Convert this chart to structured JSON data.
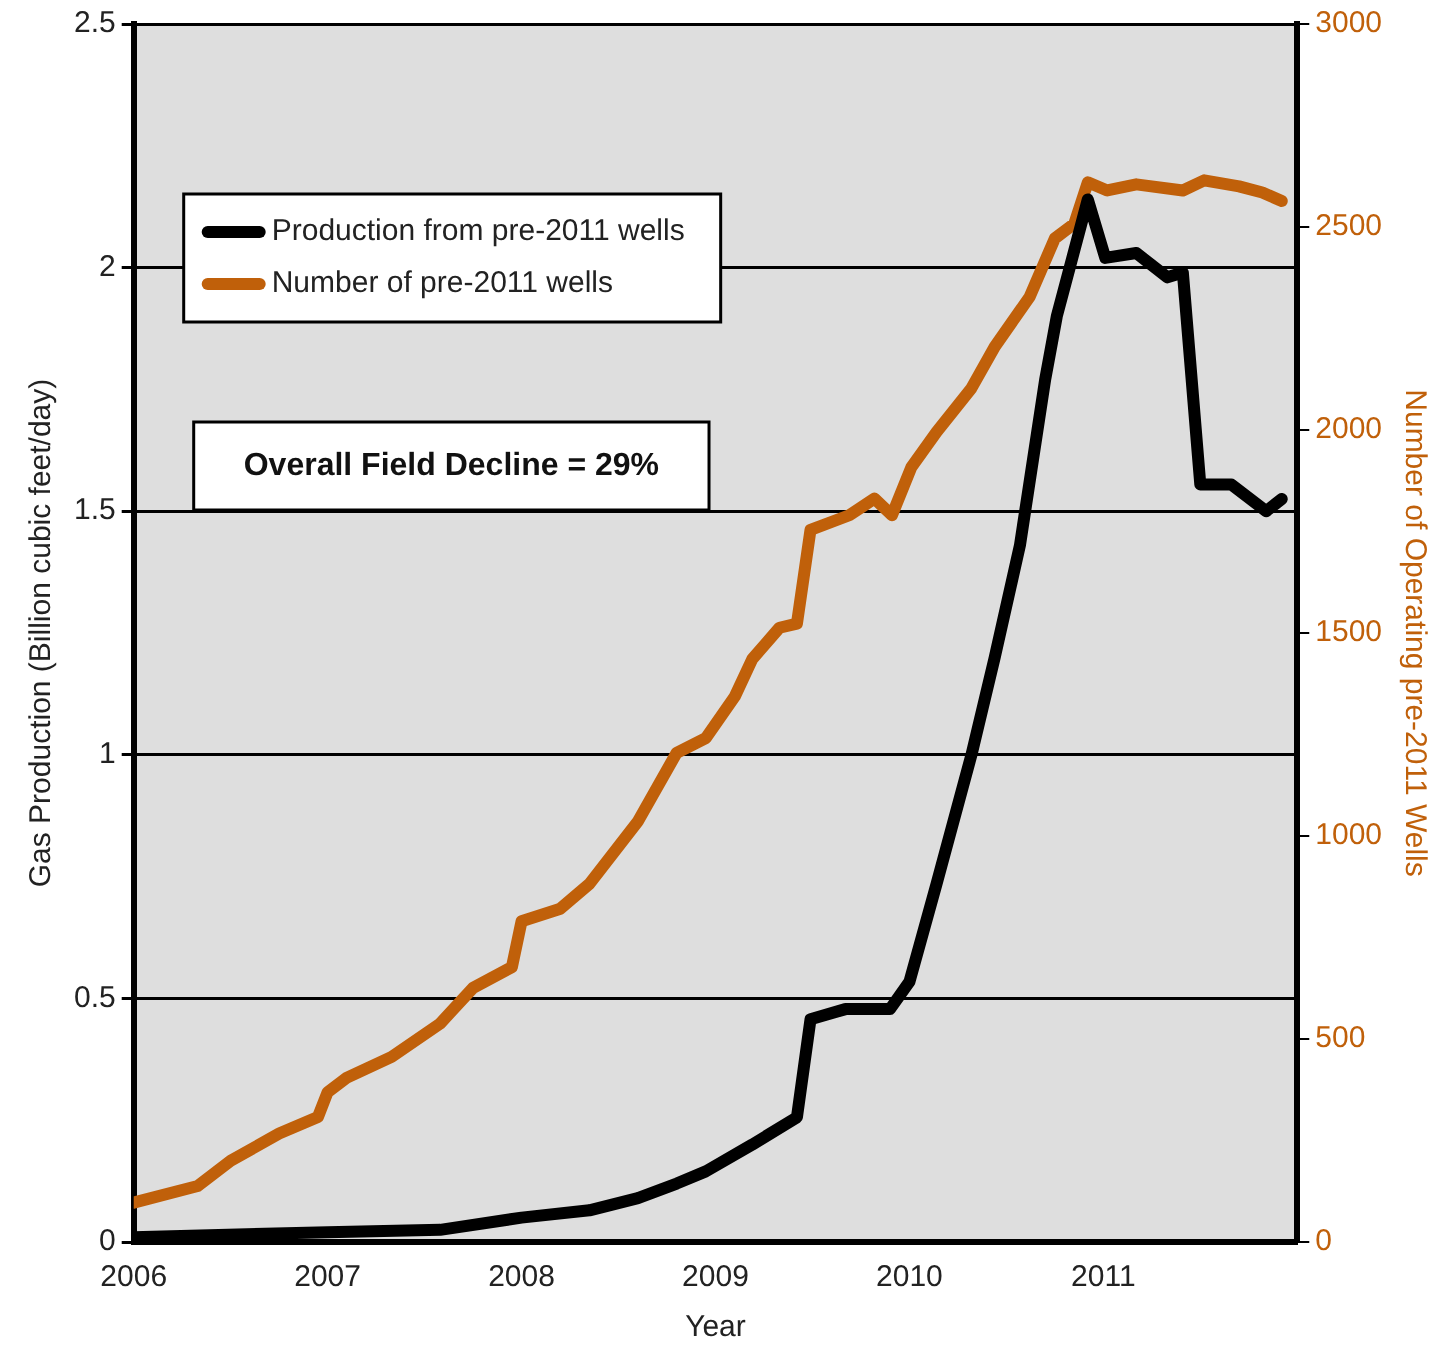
{
  "chart_data": {
    "type": "line",
    "xlabel": "Year",
    "ylabel": "Gas Production (Billion cubic feet/day)",
    "y2label": "Number of Operating pre-2011 Wells",
    "xlim": [
      2006,
      2012
    ],
    "xticks": [
      2006,
      2007,
      2008,
      2009,
      2010,
      2011
    ],
    "ylim": [
      0,
      2.5
    ],
    "yticks": [
      0,
      0.5,
      1,
      1.5,
      2,
      2.5
    ],
    "y2lim": [
      0,
      3000
    ],
    "y2ticks": [
      0,
      500,
      1000,
      1500,
      2000,
      2500,
      3000
    ],
    "grid": "y",
    "legend": "top left",
    "marker": "none",
    "line_style": "solid",
    "annotations": [
      "Overall Field Decline = 29%"
    ],
    "series": [
      {
        "name": "Production from pre-2011 wells",
        "color": "#000000",
        "x": [
          2006,
          2007,
          2007.58,
          2008,
          2008.35,
          2008.6,
          2008.8,
          2008.95,
          2009.19,
          2009.42,
          2009.49,
          2009.67,
          2009.9,
          2010,
          2010.14,
          2010.32,
          2010.44,
          2010.57,
          2010.7,
          2010.76,
          2010.92,
          2011.01,
          2011.17,
          2011.33,
          2011.41,
          2011.5,
          2011.66,
          2011.84,
          2011.92
        ],
        "values": [
          0.01,
          0.02,
          0.025,
          0.05,
          0.065,
          0.09,
          0.12,
          0.145,
          0.2,
          0.256,
          0.457,
          0.478,
          0.478,
          0.534,
          0.735,
          1.0,
          1.2,
          1.43,
          1.77,
          1.9,
          2.14,
          2.02,
          2.03,
          1.98,
          1.99,
          1.555,
          1.555,
          1.5,
          1.525
        ]
      },
      {
        "name": "Number of pre-2011 wells",
        "color": "#c0600a",
        "axis": "y2",
        "x": [
          2006,
          2006.33,
          2006.5,
          2006.75,
          2006.95,
          2007,
          2007.1,
          2007.33,
          2007.58,
          2007.75,
          2007.95,
          2008,
          2008.2,
          2008.35,
          2008.6,
          2008.8,
          2008.95,
          2009.1,
          2009.19,
          2009.33,
          2009.42,
          2009.49,
          2009.69,
          2009.82,
          2009.91,
          2010.01,
          2010.14,
          2010.32,
          2010.44,
          2010.62,
          2010.75,
          2010.85,
          2010.92,
          2011.02,
          2011.17,
          2011.41,
          2011.52,
          2011.7,
          2011.82,
          2011.92
        ],
        "values": [
          97,
          138,
          200,
          267,
          308,
          369,
          405,
          456,
          538,
          626,
          677,
          790,
          821,
          882,
          1036,
          1205,
          1241,
          1344,
          1436,
          1513,
          1523,
          1754,
          1790,
          1831,
          1790,
          1908,
          1995,
          2103,
          2205,
          2328,
          2472,
          2508,
          2610,
          2590,
          2605,
          2590,
          2615,
          2600,
          2585,
          2564
        ]
      }
    ]
  }
}
